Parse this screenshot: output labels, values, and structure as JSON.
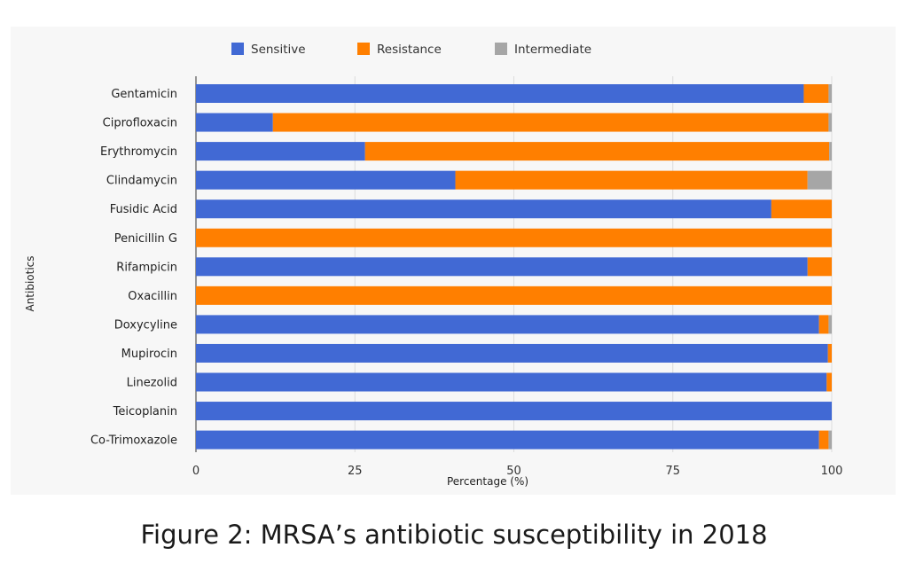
{
  "caption": "Figure 2: MRSA’s antibiotic susceptibility in 2018",
  "chart_data": {
    "type": "bar",
    "orientation": "horizontal",
    "stacked": true,
    "categories": [
      "Gentamicin",
      "Ciprofloxacin",
      "Erythromycin",
      "Clindamycin",
      "Fusidic Acid",
      "Penicillin G",
      "Rifampicin",
      "Oxacillin",
      "Doxycyline",
      "Mupirocin",
      "Linezolid",
      "Teicoplanin",
      "Co-Trimoxazole"
    ],
    "series": [
      {
        "name": "Sensitive",
        "color": "#4169d4",
        "values": [
          95.6,
          12.1,
          26.6,
          40.8,
          90.5,
          0,
          96.2,
          0,
          98.0,
          99.4,
          99.2,
          100,
          98.0
        ]
      },
      {
        "name": "Resistance",
        "color": "#ff7f00",
        "values": [
          3.9,
          87.4,
          73.0,
          55.4,
          9.5,
          100,
          3.8,
          100,
          1.5,
          0.6,
          0.8,
          0,
          1.5
        ]
      },
      {
        "name": "Intermediate",
        "color": "#a6a6a6",
        "values": [
          0.5,
          0.5,
          0.4,
          3.8,
          0,
          0,
          0,
          0,
          0.5,
          0,
          0,
          0,
          0.5
        ]
      }
    ],
    "xlabel": "Percentage (%)",
    "ylabel": "Antibiotics",
    "xlim": [
      0,
      100
    ],
    "xticks": [
      "0",
      "25",
      "50",
      "75",
      "100"
    ],
    "grid": true,
    "legend": "top"
  }
}
